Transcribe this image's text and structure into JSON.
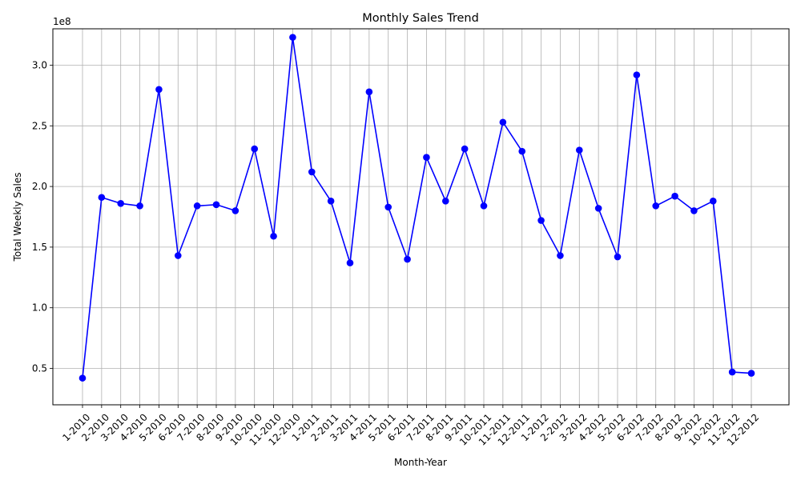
{
  "chart_data": {
    "type": "line",
    "title": "Monthly Sales Trend",
    "xlabel": "Month-Year",
    "ylabel": "Total Weekly Sales",
    "y_offset_label": "1e8",
    "categories": [
      "1-2010",
      "2-2010",
      "3-2010",
      "4-2010",
      "5-2010",
      "6-2010",
      "7-2010",
      "8-2010",
      "9-2010",
      "10-2010",
      "11-2010",
      "12-2010",
      "1-2011",
      "2-2011",
      "3-2011",
      "4-2011",
      "5-2011",
      "6-2011",
      "7-2011",
      "8-2011",
      "9-2011",
      "10-2011",
      "11-2011",
      "12-2011",
      "1-2012",
      "2-2012",
      "3-2012",
      "4-2012",
      "5-2012",
      "6-2012",
      "7-2012",
      "8-2012",
      "9-2012",
      "10-2012",
      "11-2012",
      "12-2012"
    ],
    "series": [
      {
        "values": [
          0.42,
          1.91,
          1.86,
          1.84,
          2.8,
          1.43,
          1.84,
          1.85,
          1.8,
          2.31,
          1.59,
          3.23,
          2.12,
          1.88,
          1.37,
          2.78,
          1.83,
          1.4,
          2.24,
          1.88,
          2.31,
          1.84,
          2.53,
          2.29,
          1.72,
          1.43,
          2.3,
          1.82,
          1.42,
          2.92,
          1.84,
          1.92,
          1.8,
          1.88,
          0.47,
          0.46
        ],
        "color": "#0000ff"
      }
    ],
    "y_ticks": [
      "0.5",
      "1.0",
      "1.5",
      "2.0",
      "2.5",
      "3.0"
    ],
    "y_tick_values": [
      0.5,
      1.0,
      1.5,
      2.0,
      2.5,
      3.0
    ],
    "ylim": [
      0.2,
      3.3
    ],
    "grid": true,
    "marker": "circle"
  }
}
